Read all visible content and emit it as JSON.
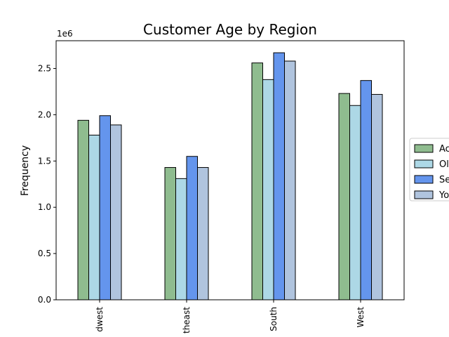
{
  "chart_data": {
    "type": "bar",
    "title": "Customer Age by Region",
    "xlabel": "",
    "ylabel": "Frequency",
    "y_offset_label": "1e6",
    "y_scale": 1000000,
    "ylim": [
      0,
      2800000
    ],
    "yticks": [
      0,
      500000,
      1000000,
      1500000,
      2000000,
      2500000
    ],
    "ytick_labels": [
      "0.0",
      "0.5",
      "1.0",
      "1.5",
      "2.0",
      "2.5"
    ],
    "categories": [
      "dwest",
      "theast",
      "South",
      "West"
    ],
    "series": [
      {
        "name": "Ac",
        "color": "#8fbc8f",
        "values": [
          1940000,
          1430000,
          2560000,
          2230000
        ]
      },
      {
        "name": "Ol",
        "color": "#add8e6",
        "values": [
          1780000,
          1310000,
          2380000,
          2100000
        ]
      },
      {
        "name": "Se",
        "color": "#6495ed",
        "values": [
          1990000,
          1550000,
          2670000,
          2370000
        ]
      },
      {
        "name": "Yo",
        "color": "#b0c4de",
        "values": [
          1890000,
          1430000,
          2580000,
          2220000
        ]
      }
    ],
    "legend_position": "right (cropped)",
    "grid": false
  }
}
